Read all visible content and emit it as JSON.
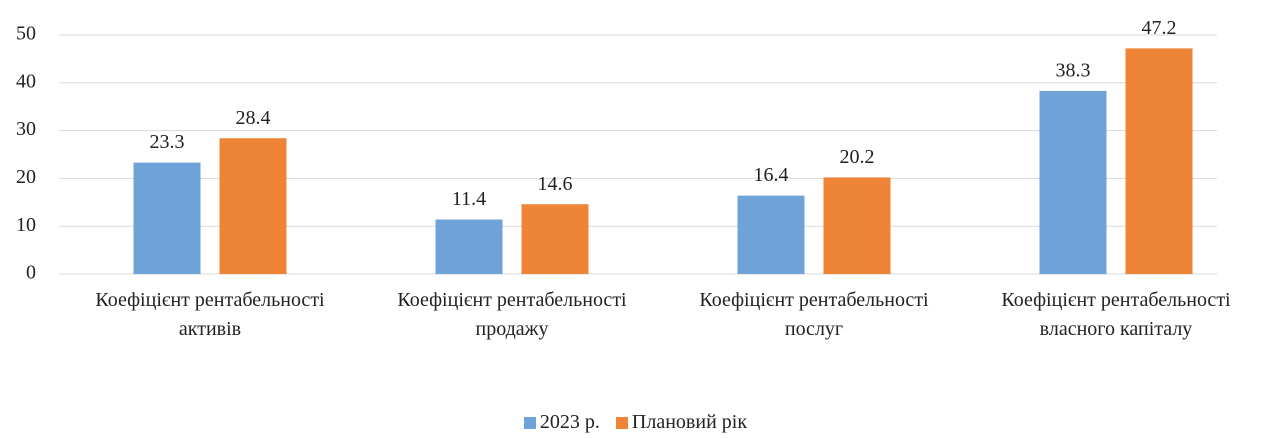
{
  "chart_data": {
    "type": "bar",
    "categories": [
      "Коефіцієнт рентабельності активів",
      "Коефіцієнт рентабельності продажу",
      "Коефіцієнт рентабельності послуг",
      "Коефіцієнт рентабельності власного капіталу"
    ],
    "series": [
      {
        "name": "2023 р.",
        "color": "#6fa3d8",
        "values": [
          23.3,
          11.4,
          16.4,
          38.3
        ]
      },
      {
        "name": "Плановий рік",
        "color": "#ee8436",
        "values": [
          28.4,
          14.6,
          20.2,
          47.2
        ]
      }
    ],
    "ylim": [
      0,
      50
    ],
    "yticks": [
      0,
      10,
      20,
      30,
      40,
      50
    ],
    "grid": true,
    "legend": "bottom"
  }
}
